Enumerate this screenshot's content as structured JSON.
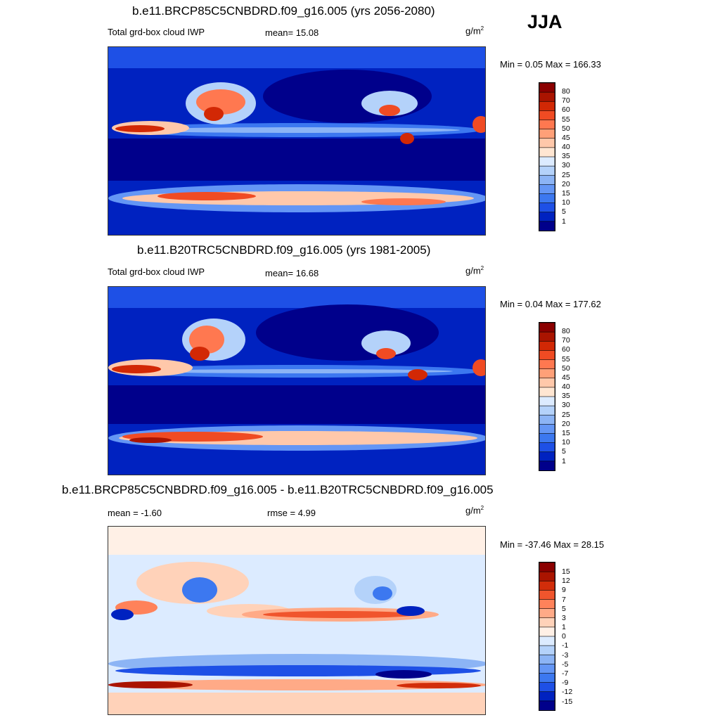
{
  "season_label": "JJA",
  "units": "g/m",
  "units_exp": "2",
  "panels": [
    {
      "title": "b.e11.BRCP85C5CNBDRD.f09_g16.005 (yrs 2056-2080)",
      "left_label": "Total grd-box cloud IWP",
      "stat_label": "mean=  15.08",
      "minmax": "Min =   0.05 Max = 166.33",
      "colorbar_labels": [
        "80",
        "70",
        "60",
        "55",
        "50",
        "45",
        "40",
        "35",
        "30",
        "25",
        "20",
        "15",
        "10",
        "5",
        "1"
      ]
    },
    {
      "title": "b.e11.B20TRC5CNBDRD.f09_g16.005 (yrs 1981-2005)",
      "left_label": "Total grd-box cloud IWP",
      "stat_label": "mean=  16.68",
      "minmax": "Min =   0.04 Max = 177.62",
      "colorbar_labels": [
        "80",
        "70",
        "60",
        "55",
        "50",
        "45",
        "40",
        "35",
        "30",
        "25",
        "20",
        "15",
        "10",
        "5",
        "1"
      ]
    },
    {
      "title": "b.e11.BRCP85C5CNBDRD.f09_g16.005 - b.e11.B20TRC5CNBDRD.f09_g16.005",
      "left_label": "mean =  -1.60",
      "stat_label": "rmse =   4.99",
      "minmax": "Min = -37.46 Max =  28.15",
      "colorbar_labels": [
        "15",
        "12",
        "9",
        "7",
        "5",
        "3",
        "1",
        "0",
        "-1",
        "-3",
        "-5",
        "-7",
        "-9",
        "-12",
        "-15"
      ]
    }
  ],
  "colors": {
    "abs_scale": [
      "#00008b",
      "#0022c0",
      "#1e50e6",
      "#3c78f0",
      "#6496f5",
      "#8cb4f5",
      "#b4d2fa",
      "#dcebff",
      "#ffe6d2",
      "#ffc8aa",
      "#ffa078",
      "#ff7850",
      "#f04b23",
      "#d22805",
      "#aa1400",
      "#8b0000"
    ],
    "diff_scale": [
      "#00008b",
      "#0022c0",
      "#1e50e6",
      "#3c78f0",
      "#6496f5",
      "#8cb4f5",
      "#b4d2fa",
      "#dcebff",
      "#fff0e6",
      "#ffd2b9",
      "#ffaa87",
      "#ff825a",
      "#f0552d",
      "#d22d0a",
      "#aa1400",
      "#8b0000"
    ]
  },
  "chart_data": [
    {
      "type": "heatmap",
      "title": "b.e11.BRCP85C5CNBDRD.f09_g16.005 (yrs 2056-2080)",
      "variable": "Total grd-box cloud IWP",
      "units": "g/m2",
      "season": "JJA",
      "mean": 15.08,
      "min": 0.05,
      "max": 166.33,
      "contour_levels": [
        1,
        5,
        10,
        15,
        20,
        25,
        30,
        35,
        40,
        45,
        50,
        55,
        60,
        70,
        80
      ]
    },
    {
      "type": "heatmap",
      "title": "b.e11.B20TRC5CNBDRD.f09_g16.005 (yrs 1981-2005)",
      "variable": "Total grd-box cloud IWP",
      "units": "g/m2",
      "season": "JJA",
      "mean": 16.68,
      "min": 0.04,
      "max": 177.62,
      "contour_levels": [
        1,
        5,
        10,
        15,
        20,
        25,
        30,
        35,
        40,
        45,
        50,
        55,
        60,
        70,
        80
      ]
    },
    {
      "type": "heatmap",
      "title": "b.e11.BRCP85C5CNBDRD.f09_g16.005 - b.e11.B20TRC5CNBDRD.f09_g16.005",
      "units": "g/m2",
      "season": "JJA",
      "mean": -1.6,
      "rmse": 4.99,
      "min": -37.46,
      "max": 28.15,
      "contour_levels": [
        -15,
        -12,
        -9,
        -7,
        -5,
        -3,
        -1,
        0,
        1,
        3,
        5,
        7,
        9,
        12,
        15
      ]
    }
  ]
}
